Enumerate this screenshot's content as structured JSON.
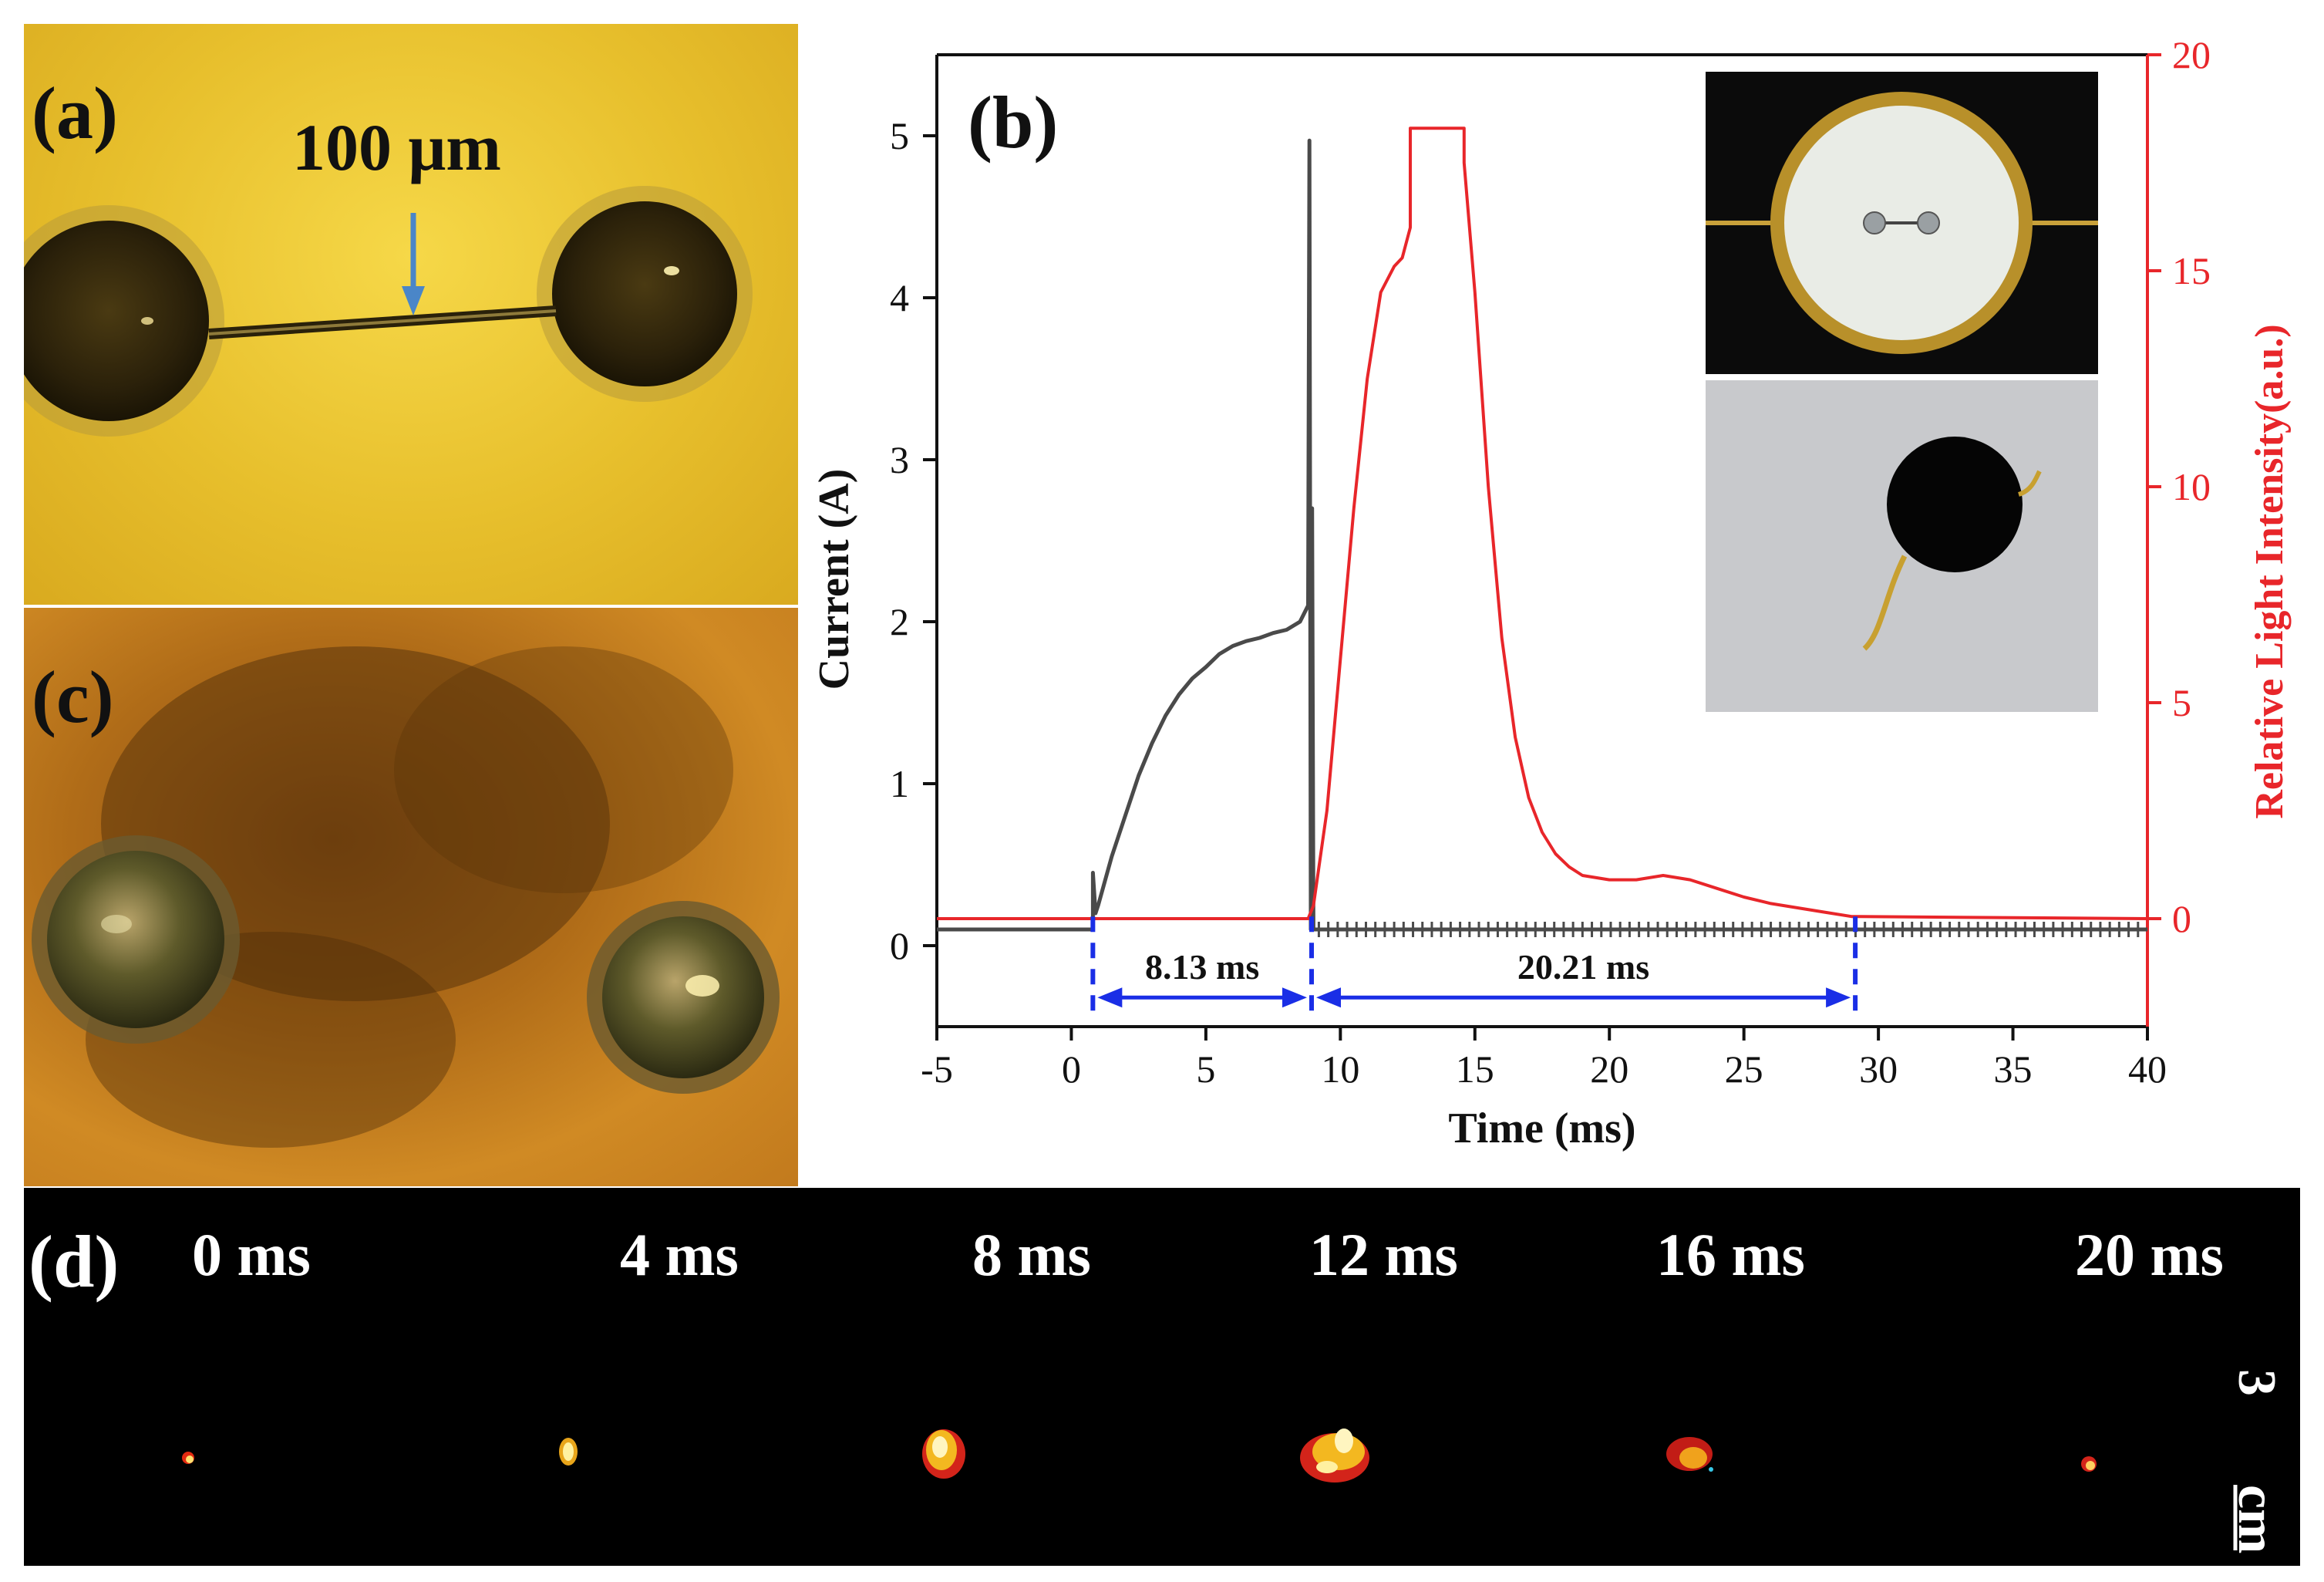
{
  "figure": {
    "panel_a": {
      "letter": "(a)",
      "scale_text": "100 μm"
    },
    "panel_b": {
      "letter": "(b)"
    },
    "panel_c": {
      "letter": "(c)"
    },
    "panel_d": {
      "letter": "(d)",
      "frames": [
        "0 ms",
        "4 ms",
        "8 ms",
        "12 ms",
        "16 ms",
        "20 ms"
      ],
      "scale_number": "3",
      "scale_unit": "cm"
    }
  },
  "colors": {
    "current": "#4a4a4a",
    "light": "#e8262a",
    "annotation": "#1a2ee6",
    "axis": "#111111"
  },
  "chart_data": {
    "type": "line",
    "title": "",
    "xlabel": "Time (ms)",
    "ylabel": "Current (A)",
    "y2label": "Relative Light Intensity(a.u.)",
    "xlim": [
      -5,
      40
    ],
    "ylim": [
      -0.5,
      5.5
    ],
    "y2lim": [
      -2.5,
      20
    ],
    "x_ticks": [
      "-5",
      "0",
      "5",
      "10",
      "15",
      "20",
      "25",
      "30",
      "35",
      "40"
    ],
    "x_tick_values": [
      -5,
      0,
      5,
      10,
      15,
      20,
      25,
      30,
      35,
      40
    ],
    "y_ticks": [
      "0",
      "1",
      "2",
      "3",
      "4",
      "5"
    ],
    "y_tick_values": [
      0,
      1,
      2,
      3,
      4,
      5
    ],
    "y2_ticks": [
      "0",
      "5",
      "10",
      "15",
      "20"
    ],
    "y2_tick_values": [
      0,
      5,
      10,
      15,
      20
    ],
    "series": [
      {
        "name": "Current",
        "axis": "left",
        "x": [
          -5,
          -0.3,
          -0.3,
          0.8,
          0.8,
          0.9,
          1.0,
          1.5,
          2.0,
          2.5,
          3.0,
          3.5,
          4.0,
          4.5,
          5.0,
          5.5,
          6.0,
          6.5,
          7.0,
          7.5,
          8.0,
          8.5,
          8.8,
          8.85,
          8.9,
          8.95,
          9.0,
          40
        ],
        "values": [
          0.1,
          0.1,
          0.1,
          0.1,
          0.45,
          0.2,
          0.25,
          0.55,
          0.8,
          1.05,
          1.25,
          1.42,
          1.55,
          1.65,
          1.72,
          1.8,
          1.85,
          1.88,
          1.9,
          1.93,
          1.95,
          2.0,
          2.1,
          4.97,
          0.1,
          2.7,
          0.1,
          0.1
        ]
      },
      {
        "name": "Relative Light Intensity",
        "axis": "right",
        "x": [
          -5,
          8.8,
          9.0,
          9.5,
          10.0,
          10.5,
          11.0,
          11.5,
          12.0,
          12.3,
          12.6,
          12.6,
          14.6,
          14.6,
          15.0,
          15.5,
          16.0,
          16.5,
          17.0,
          17.5,
          18.0,
          18.5,
          19.0,
          20.0,
          21.0,
          22.0,
          23.0,
          24.0,
          25.0,
          26.0,
          27.0,
          28.0,
          29.0,
          40
        ],
        "values": [
          0,
          0,
          0.3,
          2.5,
          6.0,
          9.5,
          12.5,
          14.5,
          15.1,
          15.3,
          16.0,
          18.3,
          18.3,
          17.5,
          14.5,
          10.0,
          6.5,
          4.2,
          2.8,
          2.0,
          1.5,
          1.2,
          1.0,
          0.9,
          0.9,
          1.0,
          0.9,
          0.7,
          0.5,
          0.35,
          0.25,
          0.15,
          0.05,
          0.0
        ]
      }
    ],
    "annotations": [
      {
        "text": "8.13 ms",
        "x_start": 0.8,
        "x_end": 8.93
      },
      {
        "text": "20.21 ms",
        "x_start": 8.93,
        "x_end": 29.14
      }
    ]
  }
}
